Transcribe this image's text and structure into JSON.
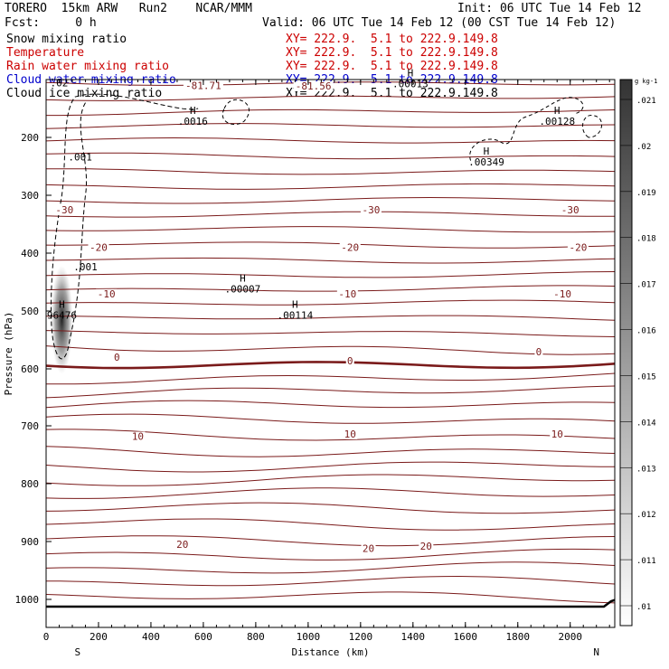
{
  "header": {
    "line1_left": "TORERO  15km ARW   Run2    NCAR/MMM",
    "line1_right": "Init: 06 UTC Tue 14 Feb 12",
    "line2_left": "Fcst:     0 h",
    "line2_right": "Valid: 06 UTC Tue 14 Feb 12 (00 CST Tue 14 Feb 12)"
  },
  "legend": [
    {
      "name": "Snow mixing ratio",
      "xy": "XY= 222.9.  5.1 to 222.9.149.8",
      "color": "#000000"
    },
    {
      "name": "Temperature",
      "xy": "XY= 222.9.  5.1 to 222.9.149.8",
      "color": "#cc0000"
    },
    {
      "name": "Rain water mixing ratio",
      "xy": "XY= 222.9.  5.1 to 222.9.149.8",
      "color": "#cc0000"
    },
    {
      "name": "Cloud water mixing ratio",
      "xy": "XY= 222.9.  5.1 to 222.9.149.8",
      "color": "#0000cc"
    },
    {
      "name": "Cloud ice mixing ratio",
      "xy": "XY= 222.9.  5.1 to 222.9.149.8",
      "color": "#000000"
    }
  ],
  "colors": {
    "temperature": "#7a1a1a",
    "terrain": "#000000",
    "axis": "#000000"
  },
  "chart_data": {
    "type": "cross-section",
    "xlabel": "Distance (km)",
    "ylabel": "Pressure (hPa)",
    "x_ticks": [
      0,
      200,
      400,
      600,
      800,
      1000,
      1200,
      1400,
      1600,
      1800,
      2000
    ],
    "y_ticks": [
      200,
      300,
      400,
      500,
      600,
      700,
      800,
      900,
      1000
    ],
    "xlim": [
      0,
      2170
    ],
    "ylim": [
      1015,
      100
    ],
    "x_end_labels": {
      "left": "S",
      "right": "N"
    },
    "colorbar": {
      "unit": "g kg-1",
      "tick_labels": [
        ".01",
        ".011",
        ".012",
        ".013",
        ".014",
        ".015",
        ".016",
        ".017",
        ".018",
        ".019",
        ".02",
        ".021"
      ]
    },
    "temperature_labels": [
      {
        "text": "-81.71",
        "x": 600,
        "p": 110
      },
      {
        "text": "-81.56",
        "x": 1020,
        "p": 111
      },
      {
        "text": "-30",
        "x": 70,
        "p": 325
      },
      {
        "text": "-30",
        "x": 1240,
        "p": 325
      },
      {
        "text": "-30",
        "x": 2000,
        "p": 325
      },
      {
        "text": "-20",
        "x": 200,
        "p": 390
      },
      {
        "text": "-20",
        "x": 1160,
        "p": 390
      },
      {
        "text": "-20",
        "x": 2030,
        "p": 390
      },
      {
        "text": "-10",
        "x": 230,
        "p": 470
      },
      {
        "text": "-10",
        "x": 1150,
        "p": 470
      },
      {
        "text": "-10",
        "x": 1970,
        "p": 470
      },
      {
        "text": "0",
        "x": 270,
        "p": 580
      },
      {
        "text": "0",
        "x": 1160,
        "p": 586
      },
      {
        "text": "0",
        "x": 1880,
        "p": 570
      },
      {
        "text": "10",
        "x": 350,
        "p": 718
      },
      {
        "text": "10",
        "x": 1160,
        "p": 714
      },
      {
        "text": "10",
        "x": 1950,
        "p": 714
      },
      {
        "text": "20",
        "x": 520,
        "p": 905
      },
      {
        "text": "20",
        "x": 1230,
        "p": 912
      },
      {
        "text": "20",
        "x": 1450,
        "p": 908
      }
    ],
    "maxima_labels": [
      {
        "value": ".0016",
        "x": 560,
        "p": 175
      },
      {
        "value": ".00128",
        "x": 1950,
        "p": 175
      },
      {
        "value": ".00349",
        "x": 1680,
        "p": 245
      },
      {
        "value": ".00007",
        "x": 750,
        "p": 465
      },
      {
        "value": ".00114",
        "x": 950,
        "p": 510
      },
      {
        "value": "96476",
        "x": 60,
        "p": 510
      },
      {
        "value": ".00013",
        "x": 1390,
        "p": 110
      }
    ],
    "contour_labels": [
      {
        "text": ".001",
        "x": 130,
        "p": 240
      },
      {
        "text": ".001",
        "x": 150,
        "p": 430
      },
      {
        "text": ".02",
        "x": 50,
        "p": 112
      }
    ]
  }
}
